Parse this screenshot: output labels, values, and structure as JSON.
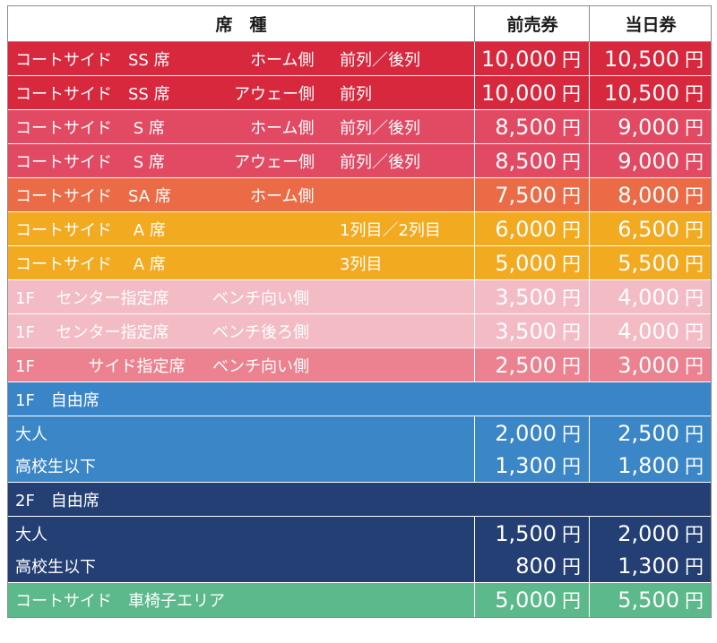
{
  "header": {
    "seat": "席　種",
    "advance": "前売券",
    "sameday": "当日券"
  },
  "colors": {
    "ss_home": "#d8283e",
    "ss_away": "#d8283e",
    "s": "#e24963",
    "sa": "#eb6b47",
    "a": "#f2aa21",
    "center": "#f3bcc4",
    "side": "#ec8290",
    "free1f": "#3a84c8",
    "free1f_body": "#3b86c7",
    "free2f": "#243f74",
    "wheel": "#5cb98b"
  },
  "rows": [
    {
      "a": "コートサイド　SS 席",
      "b": "ホーム側",
      "c": "前列／後列",
      "p1": "10,000",
      "p2": "10,500"
    },
    {
      "a": "コートサイド　SS 席",
      "b": "アウェー側",
      "c": "前列",
      "p1": "10,000",
      "p2": "10,500"
    },
    {
      "a": "コートサイド　 S 席",
      "b": "ホーム側",
      "c": "前列／後列",
      "p1": "8,500",
      "p2": "9,000"
    },
    {
      "a": "コートサイド　 S 席",
      "b": "アウェー側",
      "c": "前列／後列",
      "p1": "8,500",
      "p2": "9,000"
    },
    {
      "a": "コートサイド　SA 席",
      "b": "ホーム側",
      "c": "",
      "p1": "7,500",
      "p2": "8,000"
    },
    {
      "a": "コートサイド　 A 席",
      "b": "",
      "c": "1列目／2列目",
      "p1": "6,000",
      "p2": "6,500"
    },
    {
      "a": "コートサイド　 A 席",
      "b": "",
      "c": "3列目",
      "p1": "5,000",
      "p2": "5,500"
    },
    {
      "a": "1F　 センター指定席",
      "b": "ベンチ向い側",
      "c": "",
      "p1": "3,500",
      "p2": "4,000"
    },
    {
      "a": "1F　 センター指定席",
      "b": "ベンチ後ろ側",
      "c": "",
      "p1": "3,500",
      "p2": "4,000"
    },
    {
      "a": "1F　　　 サイド指定席",
      "b": "ベンチ向い側",
      "c": "",
      "p1": "2,500",
      "p2": "3,000"
    }
  ],
  "free1f": {
    "title": "1F　自由席",
    "items": [
      {
        "label": "大人",
        "p1": "2,000",
        "p2": "2,500"
      },
      {
        "label": "高校生以下",
        "p1": "1,300",
        "p2": "1,800"
      }
    ]
  },
  "free2f": {
    "title": "2F　自由席",
    "items": [
      {
        "label": "大人",
        "p1": "1,500",
        "p2": "2,000"
      },
      {
        "label": "高校生以下",
        "p1": "800",
        "p2": "1,300"
      }
    ]
  },
  "wheelchair": {
    "label": "コートサイド　車椅子エリア",
    "p1": "5,000",
    "p2": "5,500"
  },
  "yen": "円"
}
